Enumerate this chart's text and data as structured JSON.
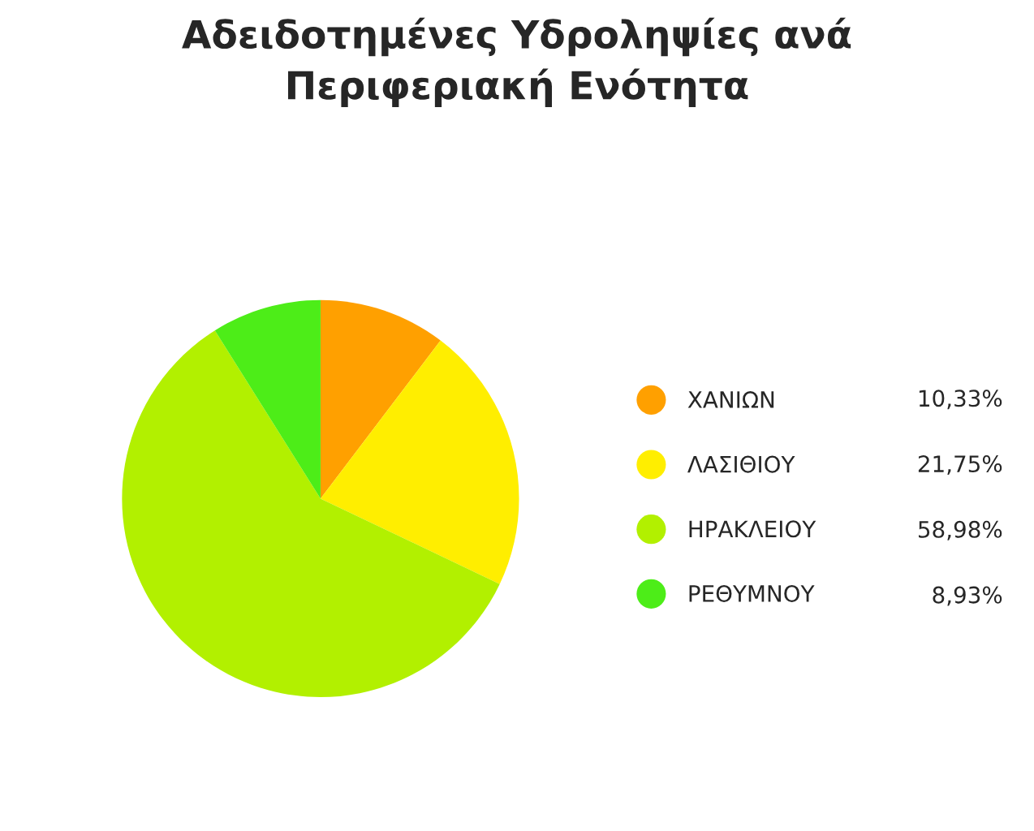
{
  "chart_data": {
    "type": "pie",
    "title": "Αδειδοτημένες Υδροληψίες ανά\nΠεριφεριακή Ενότητα",
    "categories": [
      "ΧΑΝΙΩΝ",
      "ΛΑΣΙΘΙΟΥ",
      "ΗΡΑΚΛΕΙΟΥ",
      "ΡΕΘΥΜΝΟΥ"
    ],
    "values": [
      10.33,
      21.75,
      58.98,
      8.93
    ],
    "value_labels": [
      "10,33%",
      "21,75%",
      "58,98%",
      "8,93%"
    ],
    "colors": [
      "#ffa000",
      "#ffee00",
      "#b2f000",
      "#4ded18"
    ],
    "legend": "right"
  }
}
